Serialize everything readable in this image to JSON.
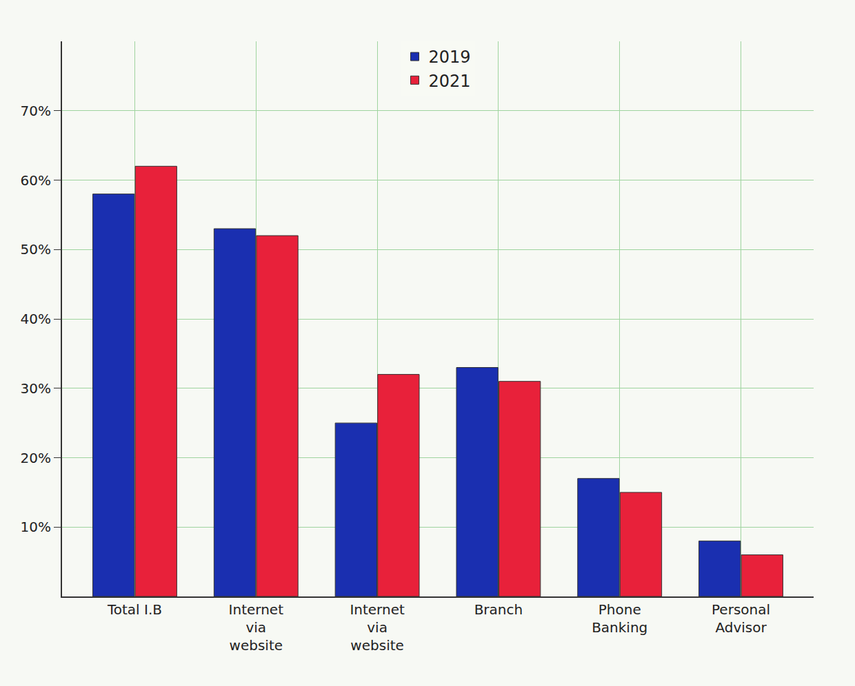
{
  "chart_data": {
    "type": "bar",
    "categories": [
      "Total I.B",
      "Internet via website",
      "Internet via website",
      "Branch",
      "Phone Banking",
      "Personal Advisor"
    ],
    "series": [
      {
        "name": "2019",
        "color": "#1a2fb0",
        "values": [
          58,
          53,
          25,
          33,
          17,
          8
        ]
      },
      {
        "name": "2021",
        "color": "#e8213a",
        "values": [
          62,
          52,
          32,
          31,
          15,
          6
        ]
      }
    ],
    "ylim": [
      0,
      80
    ],
    "yticks": [
      {
        "value": 10,
        "label": "10%"
      },
      {
        "value": 20,
        "label": "20%"
      },
      {
        "value": 30,
        "label": "30%"
      },
      {
        "value": 40,
        "label": "40%"
      },
      {
        "value": 50,
        "label": "50%"
      },
      {
        "value": 60,
        "label": "60%"
      },
      {
        "value": 70,
        "label": "70%"
      }
    ],
    "grid": true,
    "legend": "top"
  }
}
